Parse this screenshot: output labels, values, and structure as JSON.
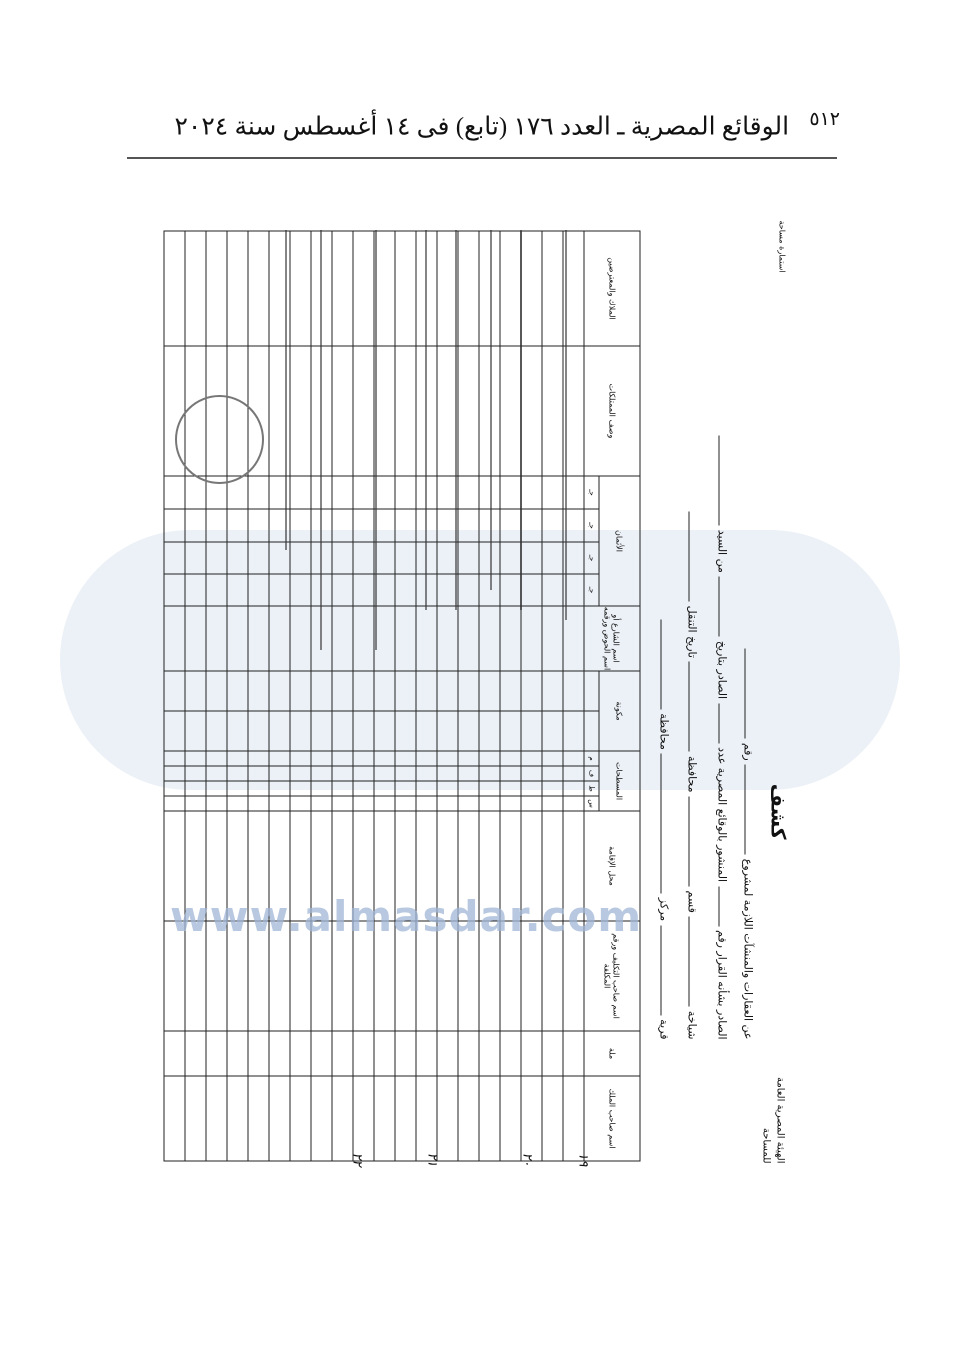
{
  "running_head": {
    "page_number": "٥١٢",
    "text": "الوقائع المصرية ـ العدد ١٧٦ (تابع) فى ١٤ أغسطس سنة ٢٠٢٤"
  },
  "form": {
    "agency": "الهيئة المصرية العامة للمساحة",
    "serial_label": "استمارة مساحة",
    "title": "كشف",
    "line1": "عن العقارات والمنشآت اللازمة لمشروع",
    "line1_b": "رقم",
    "line2": "الصادر بشأنه القرار رقم",
    "line2_b": "المنشور بالوقائع المصرية عدد",
    "line2_c": "الصادر بتاريخ",
    "line2_d": "من السيد",
    "line3": "شياخة",
    "line3_b": "قسم",
    "line3_c": "محافظة",
    "line3_d": "تاريخ التنقل",
    "line4": "قرية",
    "line4_b": "مركز",
    "line4_c": "محافظة",
    "columns": [
      "اسم صاحب الملك",
      "ملة",
      "اسم صاحب التكليف ورقم المكلفة",
      "محل الإقامة",
      "المسطحات",
      "مكونة",
      "اسم الشارع أو اسم الحوض ورقمه",
      "الأثمان",
      "وصف الممتلكات",
      "الملاك والمعترضين"
    ],
    "area_sub": [
      "س",
      "ط",
      "ف",
      "م"
    ],
    "price_sub": [
      "جـ",
      "جـ",
      "جـ",
      "جـ"
    ],
    "row_numbers": [
      "١٩",
      "٢٠",
      "٢١",
      "٢٢"
    ]
  },
  "watermark": "www.almasdar.com"
}
